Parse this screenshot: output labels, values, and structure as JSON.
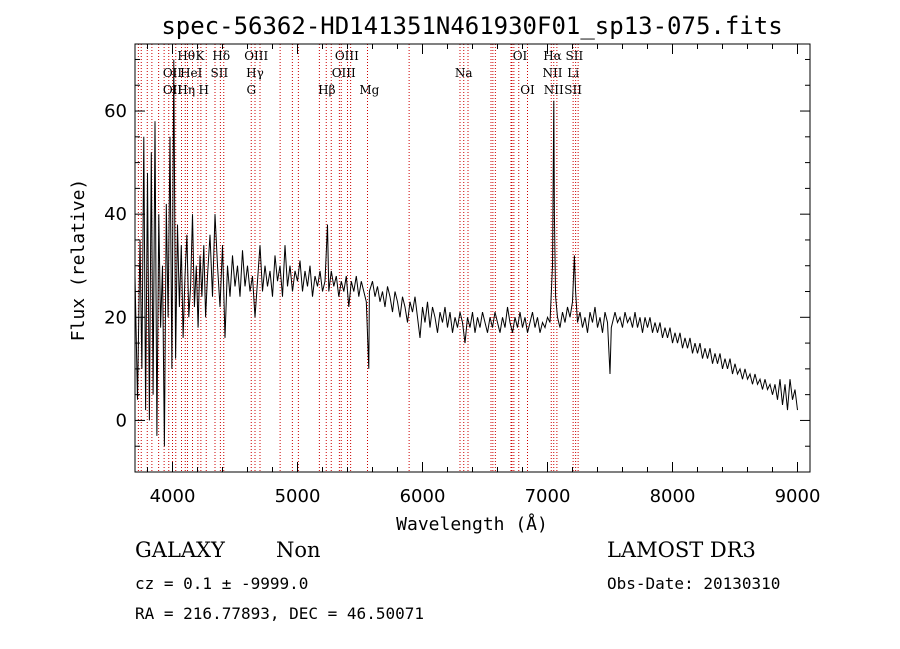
{
  "chart_data": {
    "type": "line",
    "title": "spec-56362-HD141351N461930F01_sp13-075.fits",
    "xlabel": "Wavelength (Å)",
    "ylabel": "Flux (relative)",
    "xlim": [
      3700,
      9100
    ],
    "ylim": [
      -10,
      73
    ],
    "x_ticks": [
      4000,
      5000,
      6000,
      7000,
      8000,
      9000
    ],
    "y_ticks": [
      0,
      20,
      40,
      60
    ],
    "grid": false,
    "series": [
      {
        "color": "#000000",
        "points": [
          [
            3700,
            28
          ],
          [
            3720,
            4
          ],
          [
            3740,
            35
          ],
          [
            3755,
            10
          ],
          [
            3770,
            55
          ],
          [
            3785,
            2
          ],
          [
            3800,
            48
          ],
          [
            3815,
            0
          ],
          [
            3830,
            52
          ],
          [
            3845,
            5
          ],
          [
            3860,
            58
          ],
          [
            3875,
            -3
          ],
          [
            3890,
            40
          ],
          [
            3905,
            18
          ],
          [
            3920,
            30
          ],
          [
            3935,
            -5
          ],
          [
            3950,
            42
          ],
          [
            3965,
            20
          ],
          [
            3980,
            55
          ],
          [
            3995,
            10
          ],
          [
            4010,
            70
          ],
          [
            4025,
            12
          ],
          [
            4040,
            38
          ],
          [
            4055,
            22
          ],
          [
            4070,
            34
          ],
          [
            4085,
            16
          ],
          [
            4100,
            28
          ],
          [
            4115,
            36
          ],
          [
            4130,
            20
          ],
          [
            4145,
            26
          ],
          [
            4160,
            40
          ],
          [
            4175,
            22
          ],
          [
            4190,
            30
          ],
          [
            4205,
            18
          ],
          [
            4220,
            32
          ],
          [
            4235,
            24
          ],
          [
            4250,
            34
          ],
          [
            4265,
            20
          ],
          [
            4280,
            28
          ],
          [
            4300,
            36
          ],
          [
            4320,
            24
          ],
          [
            4340,
            40
          ],
          [
            4360,
            30
          ],
          [
            4380,
            22
          ],
          [
            4400,
            34
          ],
          [
            4420,
            16
          ],
          [
            4440,
            30
          ],
          [
            4460,
            24
          ],
          [
            4480,
            32
          ],
          [
            4500,
            26
          ],
          [
            4520,
            30
          ],
          [
            4540,
            24
          ],
          [
            4560,
            33
          ],
          [
            4580,
            26
          ],
          [
            4600,
            30
          ],
          [
            4620,
            25
          ],
          [
            4640,
            28
          ],
          [
            4660,
            20
          ],
          [
            4680,
            27
          ],
          [
            4700,
            34
          ],
          [
            4720,
            25
          ],
          [
            4740,
            30
          ],
          [
            4760,
            26
          ],
          [
            4780,
            29
          ],
          [
            4800,
            24
          ],
          [
            4820,
            32
          ],
          [
            4840,
            27
          ],
          [
            4860,
            30
          ],
          [
            4880,
            24
          ],
          [
            4900,
            34
          ],
          [
            4920,
            26
          ],
          [
            4940,
            30
          ],
          [
            4960,
            25
          ],
          [
            4980,
            29
          ],
          [
            5000,
            27
          ],
          [
            5020,
            31
          ],
          [
            5040,
            25
          ],
          [
            5060,
            29
          ],
          [
            5080,
            26
          ],
          [
            5100,
            30
          ],
          [
            5120,
            24
          ],
          [
            5140,
            28
          ],
          [
            5160,
            26
          ],
          [
            5180,
            29
          ],
          [
            5200,
            25
          ],
          [
            5220,
            27
          ],
          [
            5240,
            38
          ],
          [
            5250,
            25
          ],
          [
            5270,
            29
          ],
          [
            5290,
            26
          ],
          [
            5310,
            28
          ],
          [
            5330,
            24
          ],
          [
            5350,
            27
          ],
          [
            5370,
            25
          ],
          [
            5390,
            28
          ],
          [
            5410,
            22
          ],
          [
            5430,
            27
          ],
          [
            5450,
            25
          ],
          [
            5470,
            28
          ],
          [
            5490,
            24
          ],
          [
            5510,
            27
          ],
          [
            5530,
            25
          ],
          [
            5550,
            23
          ],
          [
            5570,
            10
          ],
          [
            5575,
            25
          ],
          [
            5600,
            27
          ],
          [
            5620,
            24
          ],
          [
            5640,
            26
          ],
          [
            5660,
            23
          ],
          [
            5680,
            25
          ],
          [
            5700,
            22
          ],
          [
            5720,
            26
          ],
          [
            5740,
            24
          ],
          [
            5760,
            21
          ],
          [
            5780,
            25
          ],
          [
            5800,
            23
          ],
          [
            5820,
            20
          ],
          [
            5840,
            24
          ],
          [
            5860,
            22
          ],
          [
            5880,
            19
          ],
          [
            5900,
            23
          ],
          [
            5920,
            21
          ],
          [
            5940,
            24
          ],
          [
            5960,
            20
          ],
          [
            5980,
            16
          ],
          [
            6000,
            22
          ],
          [
            6020,
            19
          ],
          [
            6040,
            23
          ],
          [
            6060,
            18
          ],
          [
            6080,
            22
          ],
          [
            6100,
            20
          ],
          [
            6120,
            17
          ],
          [
            6140,
            21
          ],
          [
            6160,
            19
          ],
          [
            6180,
            22
          ],
          [
            6200,
            18
          ],
          [
            6220,
            21
          ],
          [
            6240,
            17
          ],
          [
            6260,
            20
          ],
          [
            6280,
            18
          ],
          [
            6300,
            21
          ],
          [
            6320,
            19
          ],
          [
            6340,
            15
          ],
          [
            6360,
            20
          ],
          [
            6380,
            18
          ],
          [
            6400,
            21
          ],
          [
            6420,
            17
          ],
          [
            6440,
            20
          ],
          [
            6460,
            18
          ],
          [
            6480,
            21
          ],
          [
            6500,
            19
          ],
          [
            6520,
            17
          ],
          [
            6540,
            20
          ],
          [
            6560,
            18
          ],
          [
            6580,
            21
          ],
          [
            6600,
            19
          ],
          [
            6620,
            17
          ],
          [
            6640,
            20
          ],
          [
            6660,
            18
          ],
          [
            6680,
            22
          ],
          [
            6700,
            19
          ],
          [
            6720,
            17
          ],
          [
            6740,
            20
          ],
          [
            6760,
            18
          ],
          [
            6780,
            21
          ],
          [
            6800,
            18
          ],
          [
            6820,
            20
          ],
          [
            6840,
            17
          ],
          [
            6860,
            19
          ],
          [
            6880,
            21
          ],
          [
            6900,
            18
          ],
          [
            6920,
            20
          ],
          [
            6940,
            17
          ],
          [
            6960,
            19
          ],
          [
            6980,
            18
          ],
          [
            7000,
            20
          ],
          [
            7020,
            19
          ],
          [
            7040,
            30
          ],
          [
            7050,
            62
          ],
          [
            7055,
            40
          ],
          [
            7065,
            24
          ],
          [
            7080,
            20
          ],
          [
            7100,
            18
          ],
          [
            7120,
            21
          ],
          [
            7140,
            19
          ],
          [
            7160,
            22
          ],
          [
            7180,
            20
          ],
          [
            7200,
            23
          ],
          [
            7215,
            32
          ],
          [
            7225,
            25
          ],
          [
            7240,
            19
          ],
          [
            7260,
            21
          ],
          [
            7280,
            18
          ],
          [
            7300,
            20
          ],
          [
            7320,
            17
          ],
          [
            7340,
            21
          ],
          [
            7360,
            19
          ],
          [
            7380,
            22
          ],
          [
            7400,
            18
          ],
          [
            7420,
            20
          ],
          [
            7440,
            17
          ],
          [
            7460,
            21
          ],
          [
            7480,
            19
          ],
          [
            7500,
            9
          ],
          [
            7510,
            18
          ],
          [
            7540,
            21
          ],
          [
            7560,
            19
          ],
          [
            7580,
            20
          ],
          [
            7600,
            18
          ],
          [
            7620,
            21
          ],
          [
            7640,
            19
          ],
          [
            7660,
            20
          ],
          [
            7680,
            18
          ],
          [
            7700,
            21
          ],
          [
            7720,
            18
          ],
          [
            7740,
            20
          ],
          [
            7760,
            17
          ],
          [
            7780,
            20
          ],
          [
            7800,
            18
          ],
          [
            7820,
            20
          ],
          [
            7840,
            17
          ],
          [
            7860,
            19
          ],
          [
            7880,
            17
          ],
          [
            7900,
            19
          ],
          [
            7920,
            16
          ],
          [
            7940,
            18
          ],
          [
            7960,
            16
          ],
          [
            7980,
            18
          ],
          [
            8000,
            15
          ],
          [
            8020,
            17
          ],
          [
            8040,
            15
          ],
          [
            8060,
            17
          ],
          [
            8080,
            14
          ],
          [
            8100,
            16
          ],
          [
            8120,
            14
          ],
          [
            8140,
            16
          ],
          [
            8160,
            13
          ],
          [
            8180,
            15
          ],
          [
            8200,
            13
          ],
          [
            8220,
            15
          ],
          [
            8240,
            12
          ],
          [
            8260,
            14
          ],
          [
            8280,
            12
          ],
          [
            8300,
            14
          ],
          [
            8320,
            11
          ],
          [
            8340,
            13
          ],
          [
            8360,
            11
          ],
          [
            8380,
            13
          ],
          [
            8400,
            10
          ],
          [
            8420,
            12
          ],
          [
            8440,
            10
          ],
          [
            8460,
            12
          ],
          [
            8480,
            9
          ],
          [
            8500,
            11
          ],
          [
            8520,
            9
          ],
          [
            8540,
            10
          ],
          [
            8560,
            8
          ],
          [
            8580,
            10
          ],
          [
            8600,
            8
          ],
          [
            8620,
            9
          ],
          [
            8640,
            7
          ],
          [
            8660,
            9
          ],
          [
            8680,
            7
          ],
          [
            8700,
            8
          ],
          [
            8720,
            6
          ],
          [
            8740,
            8
          ],
          [
            8760,
            6
          ],
          [
            8780,
            7
          ],
          [
            8800,
            5
          ],
          [
            8820,
            7
          ],
          [
            8840,
            4
          ],
          [
            8860,
            8
          ],
          [
            8880,
            3
          ],
          [
            8900,
            7
          ],
          [
            8920,
            2
          ],
          [
            8940,
            8
          ],
          [
            8960,
            4
          ],
          [
            8980,
            6
          ],
          [
            9000,
            2
          ]
        ]
      }
    ],
    "reference_lines": {
      "color": "#cc0000",
      "style": "dotted",
      "x": [
        3727,
        3750,
        3798,
        3835,
        3889,
        3933,
        3970,
        4026,
        4102,
        4227,
        4340,
        4383,
        4861,
        4959,
        5007,
        5175,
        5270,
        5335,
        5400,
        5893,
        6300,
        6364,
        6548,
        6563,
        6583,
        6708,
        6716,
        6731,
        4000,
        4072,
        4120,
        4160,
        4203,
        4270,
        4410,
        4630,
        4660,
        4700,
        5230,
        5350,
        5425,
        5560,
        6330,
        6770,
        6840,
        7030,
        7050,
        7075,
        7205,
        7225,
        7245
      ]
    },
    "line_labels": [
      {
        "text": "Hθ",
        "x": 4110,
        "row": 0
      },
      {
        "text": "K",
        "x": 4220,
        "row": 0
      },
      {
        "text": "Hδ",
        "x": 4390,
        "row": 0
      },
      {
        "text": "OIII",
        "x": 4670,
        "row": 0
      },
      {
        "text": "OIII",
        "x": 5395,
        "row": 0
      },
      {
        "text": "OI",
        "x": 6780,
        "row": 0
      },
      {
        "text": "Hα",
        "x": 7040,
        "row": 0
      },
      {
        "text": "SII",
        "x": 7215,
        "row": 0
      },
      {
        "text": "OII",
        "x": 4000,
        "row": 1
      },
      {
        "text": "HeI",
        "x": 4150,
        "row": 1
      },
      {
        "text": "SII",
        "x": 4375,
        "row": 1
      },
      {
        "text": "Hγ",
        "x": 4660,
        "row": 1
      },
      {
        "text": "OIII",
        "x": 5370,
        "row": 1
      },
      {
        "text": "Na",
        "x": 6330,
        "row": 1
      },
      {
        "text": "NII",
        "x": 7040,
        "row": 1
      },
      {
        "text": "Li",
        "x": 7205,
        "row": 1
      },
      {
        "text": "OII",
        "x": 4000,
        "row": 2
      },
      {
        "text": "Hη",
        "x": 4110,
        "row": 2
      },
      {
        "text": "H",
        "x": 4250,
        "row": 2
      },
      {
        "text": "G",
        "x": 4630,
        "row": 2
      },
      {
        "text": "Hβ",
        "x": 5235,
        "row": 2
      },
      {
        "text": "Mg",
        "x": 5575,
        "row": 2
      },
      {
        "text": "OI",
        "x": 6840,
        "row": 2
      },
      {
        "text": "NII",
        "x": 7050,
        "row": 2
      },
      {
        "text": "SII",
        "x": 7205,
        "row": 2
      }
    ]
  },
  "info": {
    "object_class": "GALAXY",
    "subclass": "Non",
    "survey": "LAMOST DR3",
    "cz": "cz = 0.1 ± -9999.0",
    "obs_date": "Obs-Date: 20130310",
    "coords": "RA = 216.77893, DEC =  46.50071"
  }
}
